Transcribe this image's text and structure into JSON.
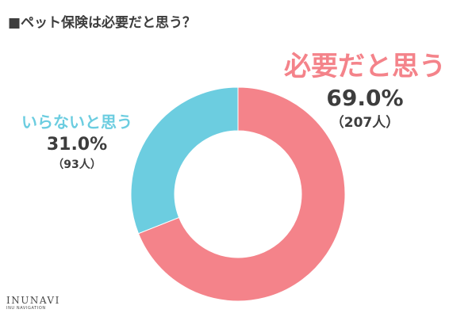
{
  "title": "■ペット保険は必要だと思う？",
  "chart_data": {
    "type": "pie",
    "style": "donut",
    "title": "■ペット保険は必要だと思う？",
    "slices": [
      {
        "label": "必要だと思う",
        "value": 69.0,
        "percent_label": "69.0%",
        "count_label": "（207人）",
        "color": "#f4838a"
      },
      {
        "label": "いらないと思う",
        "value": 31.0,
        "percent_label": "31.0%",
        "count_label": "（93人）",
        "color": "#6ccde0"
      }
    ],
    "start": "top",
    "direction": "clockwise",
    "legend": "none"
  },
  "logo": {
    "main": "INUNAVI",
    "sub": "INU NAVIGATION"
  }
}
